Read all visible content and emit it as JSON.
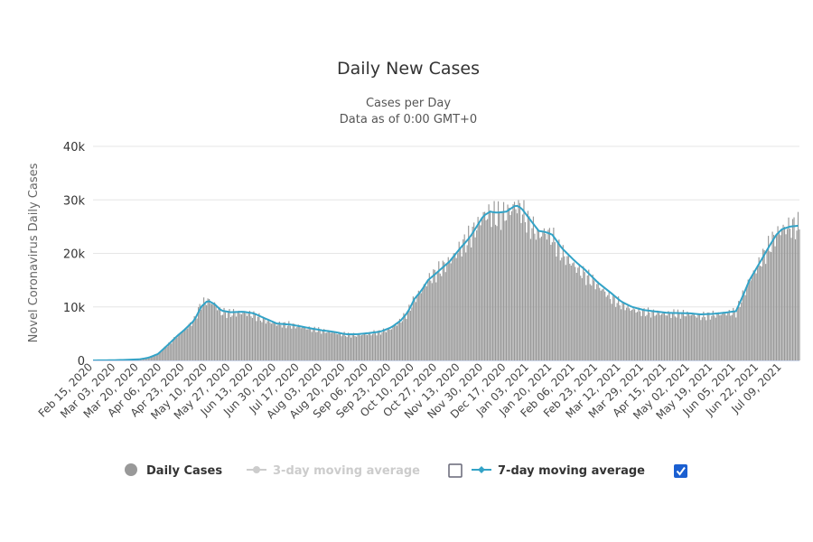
{
  "colors": {
    "bar": "#999999",
    "ma7": "#33a3c7",
    "ma3": "#cccccc",
    "grid": "#e6e6e6",
    "checkbox_checked": "#1a5fd1"
  },
  "chart_data": {
    "type": "bar",
    "title": "Daily New Cases",
    "subtitle_lines": [
      "Cases per Day",
      "Data as of 0:00 GMT+0"
    ],
    "xlabel": "",
    "ylabel": "Novel Coronavirus Daily Cases",
    "ylim": [
      0,
      40000
    ],
    "y_ticks": [
      {
        "value": 0,
        "label": "0"
      },
      {
        "value": 10000,
        "label": "10k"
      },
      {
        "value": 20000,
        "label": "20k"
      },
      {
        "value": 30000,
        "label": "30k"
      },
      {
        "value": 40000,
        "label": "40k"
      }
    ],
    "x_range": [
      "2020-02-15",
      "2021-07-22"
    ],
    "x_tick_labels": [
      "Feb 15, 2020",
      "Mar 03, 2020",
      "Mar 20, 2020",
      "Apr 06, 2020",
      "Apr 23, 2020",
      "May 10, 2020",
      "May 27, 2020",
      "Jun 13, 2020",
      "Jun 30, 2020",
      "Jul 17, 2020",
      "Aug 03, 2020",
      "Aug 20, 2020",
      "Sep 06, 2020",
      "Sep 23, 2020",
      "Oct 10, 2020",
      "Oct 27, 2020",
      "Nov 13, 2020",
      "Nov 30, 2020",
      "Dec 17, 2020",
      "Jan 03, 2021",
      "Jan 20, 2021",
      "Feb 06, 2021",
      "Feb 23, 2021",
      "Mar 12, 2021",
      "Mar 29, 2021",
      "Apr 15, 2021",
      "May 02, 2021",
      "May 19, 2021",
      "Jun 05, 2021",
      "Jun 22, 2021",
      "Jul 09, 2021"
    ],
    "grid": true,
    "legend_position": "bottom",
    "series": [
      {
        "name": "Daily Cases",
        "kind": "bar",
        "points": [
          [
            "2020-02-15",
            0
          ],
          [
            "2020-03-03",
            50
          ],
          [
            "2020-03-20",
            200
          ],
          [
            "2020-03-27",
            500
          ],
          [
            "2020-04-03",
            1200
          ],
          [
            "2020-04-10",
            2800
          ],
          [
            "2020-04-17",
            4500
          ],
          [
            "2020-04-23",
            5800
          ],
          [
            "2020-04-30",
            7500
          ],
          [
            "2020-05-05",
            10500
          ],
          [
            "2020-05-10",
            11200
          ],
          [
            "2020-05-15",
            10500
          ],
          [
            "2020-05-20",
            9000
          ],
          [
            "2020-05-27",
            8800
          ],
          [
            "2020-06-05",
            8900
          ],
          [
            "2020-06-13",
            8500
          ],
          [
            "2020-06-20",
            7600
          ],
          [
            "2020-06-30",
            6800
          ],
          [
            "2020-07-10",
            6600
          ],
          [
            "2020-07-17",
            6300
          ],
          [
            "2020-07-25",
            5900
          ],
          [
            "2020-08-03",
            5500
          ],
          [
            "2020-08-10",
            5300
          ],
          [
            "2020-08-20",
            4800
          ],
          [
            "2020-08-28",
            4700
          ],
          [
            "2020-09-06",
            5000
          ],
          [
            "2020-09-15",
            5300
          ],
          [
            "2020-09-23",
            6000
          ],
          [
            "2020-09-30",
            7500
          ],
          [
            "2020-10-05",
            9000
          ],
          [
            "2020-10-10",
            11500
          ],
          [
            "2020-10-15",
            13000
          ],
          [
            "2020-10-20",
            15000
          ],
          [
            "2020-10-27",
            16500
          ],
          [
            "2020-11-05",
            18500
          ],
          [
            "2020-11-13",
            21000
          ],
          [
            "2020-11-20",
            23000
          ],
          [
            "2020-11-25",
            25000
          ],
          [
            "2020-11-30",
            27000
          ],
          [
            "2020-12-05",
            27500
          ],
          [
            "2020-12-10",
            27000
          ],
          [
            "2020-12-17",
            27500
          ],
          [
            "2020-12-24",
            29000
          ],
          [
            "2020-12-28",
            28000
          ],
          [
            "2021-01-03",
            25500
          ],
          [
            "2021-01-10",
            23500
          ],
          [
            "2021-01-15",
            24000
          ],
          [
            "2021-01-20",
            23000
          ],
          [
            "2021-01-27",
            20000
          ],
          [
            "2021-02-06",
            17500
          ],
          [
            "2021-02-13",
            16000
          ],
          [
            "2021-02-23",
            14000
          ],
          [
            "2021-03-05",
            11500
          ],
          [
            "2021-03-12",
            10500
          ],
          [
            "2021-03-20",
            9500
          ],
          [
            "2021-03-29",
            9000
          ],
          [
            "2021-04-15",
            8700
          ],
          [
            "2021-05-02",
            8700
          ],
          [
            "2021-05-10",
            8200
          ],
          [
            "2021-05-19",
            8500
          ],
          [
            "2021-05-27",
            8800
          ],
          [
            "2021-06-05",
            9000
          ],
          [
            "2021-06-10",
            12000
          ],
          [
            "2021-06-15",
            15000
          ],
          [
            "2021-06-22",
            18000
          ],
          [
            "2021-06-30",
            21500
          ],
          [
            "2021-07-05",
            23500
          ],
          [
            "2021-07-09",
            24500
          ],
          [
            "2021-07-15",
            25000
          ],
          [
            "2021-07-22",
            25000
          ]
        ]
      },
      {
        "name": "3-day moving average",
        "kind": "line",
        "visible": false
      },
      {
        "name": "7-day moving average",
        "kind": "line",
        "visible": true,
        "points": [
          [
            "2020-02-15",
            0
          ],
          [
            "2020-03-03",
            50
          ],
          [
            "2020-03-20",
            200
          ],
          [
            "2020-03-27",
            500
          ],
          [
            "2020-04-03",
            1200
          ],
          [
            "2020-04-10",
            2800
          ],
          [
            "2020-04-17",
            4500
          ],
          [
            "2020-04-23",
            5800
          ],
          [
            "2020-04-30",
            7500
          ],
          [
            "2020-05-05",
            10000
          ],
          [
            "2020-05-10",
            11200
          ],
          [
            "2020-05-15",
            10500
          ],
          [
            "2020-05-20",
            9300
          ],
          [
            "2020-05-27",
            9000
          ],
          [
            "2020-06-05",
            9100
          ],
          [
            "2020-06-13",
            8800
          ],
          [
            "2020-06-20",
            8000
          ],
          [
            "2020-06-30",
            6900
          ],
          [
            "2020-07-10",
            6700
          ],
          [
            "2020-07-17",
            6400
          ],
          [
            "2020-07-25",
            6000
          ],
          [
            "2020-08-03",
            5600
          ],
          [
            "2020-08-10",
            5400
          ],
          [
            "2020-08-20",
            4900
          ],
          [
            "2020-08-28",
            4900
          ],
          [
            "2020-09-06",
            5100
          ],
          [
            "2020-09-15",
            5400
          ],
          [
            "2020-09-23",
            6200
          ],
          [
            "2020-09-30",
            7500
          ],
          [
            "2020-10-05",
            9000
          ],
          [
            "2020-10-10",
            11500
          ],
          [
            "2020-10-15",
            13000
          ],
          [
            "2020-10-20",
            15000
          ],
          [
            "2020-10-27",
            16500
          ],
          [
            "2020-11-05",
            18500
          ],
          [
            "2020-11-13",
            21000
          ],
          [
            "2020-11-20",
            23000
          ],
          [
            "2020-11-25",
            25000
          ],
          [
            "2020-11-30",
            27000
          ],
          [
            "2020-12-05",
            27800
          ],
          [
            "2020-12-10",
            27600
          ],
          [
            "2020-12-17",
            27800
          ],
          [
            "2020-12-24",
            29000
          ],
          [
            "2020-12-28",
            28500
          ],
          [
            "2021-01-03",
            26500
          ],
          [
            "2021-01-10",
            24200
          ],
          [
            "2021-01-15",
            24000
          ],
          [
            "2021-01-20",
            23500
          ],
          [
            "2021-01-27",
            21000
          ],
          [
            "2021-02-06",
            18500
          ],
          [
            "2021-02-13",
            17000
          ],
          [
            "2021-02-23",
            14500
          ],
          [
            "2021-03-05",
            12500
          ],
          [
            "2021-03-12",
            11000
          ],
          [
            "2021-03-20",
            10000
          ],
          [
            "2021-03-29",
            9400
          ],
          [
            "2021-04-15",
            8900
          ],
          [
            "2021-05-02",
            8800
          ],
          [
            "2021-05-10",
            8600
          ],
          [
            "2021-05-19",
            8700
          ],
          [
            "2021-05-27",
            8900
          ],
          [
            "2021-06-05",
            9200
          ],
          [
            "2021-06-10",
            12000
          ],
          [
            "2021-06-15",
            15000
          ],
          [
            "2021-06-22",
            18000
          ],
          [
            "2021-06-30",
            21500
          ],
          [
            "2021-07-05",
            23500
          ],
          [
            "2021-07-09",
            24500
          ],
          [
            "2021-07-15",
            25000
          ],
          [
            "2021-07-22",
            25200
          ]
        ]
      }
    ]
  }
}
